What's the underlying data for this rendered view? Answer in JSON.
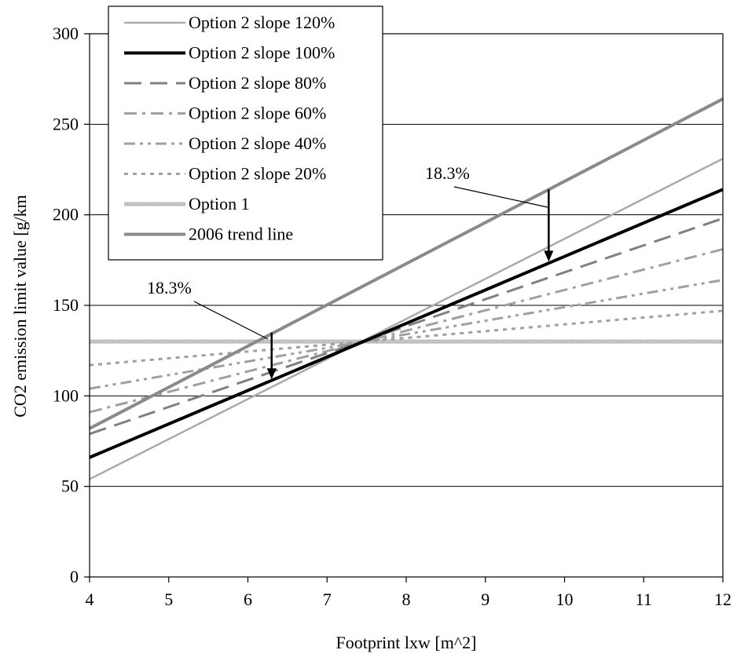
{
  "chart_data": {
    "type": "line",
    "title": "",
    "xlabel": "Footprint lxw [m^2]",
    "ylabel": "CO2 emission limit value [g/km",
    "xlim": [
      4,
      12
    ],
    "ylim": [
      0,
      300
    ],
    "xticks": [
      "4",
      "5",
      "6",
      "7",
      "8",
      "9",
      "10",
      "11",
      "12"
    ],
    "yticks": [
      "0",
      "50",
      "100",
      "150",
      "200",
      "250",
      "300"
    ],
    "grid": "horizontal",
    "legend_position": "top-left",
    "series": [
      {
        "name": "Option 2 slope 120%",
        "x": [
          4,
          12
        ],
        "y": [
          54,
          231
        ],
        "color": "#aaaaaa",
        "style": "solid-thin"
      },
      {
        "name": "Option 2 slope 100%",
        "x": [
          4,
          12
        ],
        "y": [
          66,
          214
        ],
        "color": "#000000",
        "style": "solid-thick"
      },
      {
        "name": "Option 2 slope 80%",
        "x": [
          4,
          12
        ],
        "y": [
          79,
          198
        ],
        "color": "#808080",
        "style": "long-dash"
      },
      {
        "name": "Option 2 slope 60%",
        "x": [
          4,
          12
        ],
        "y": [
          91,
          181
        ],
        "color": "#a0a0a0",
        "style": "dash-dot"
      },
      {
        "name": "Option 2 slope 40%",
        "x": [
          4,
          12
        ],
        "y": [
          104,
          164
        ],
        "color": "#a0a0a0",
        "style": "dash-dot-dot"
      },
      {
        "name": "Option 2 slope 20%",
        "x": [
          4,
          12
        ],
        "y": [
          117,
          147
        ],
        "color": "#a0a0a0",
        "style": "dotted"
      },
      {
        "name": "Option 1",
        "x": [
          4,
          12
        ],
        "y": [
          130,
          130
        ],
        "color": "#bbbbbb",
        "style": "solid-hatched"
      },
      {
        "name": "2006 trend line",
        "x": [
          4,
          12
        ],
        "y": [
          82,
          264
        ],
        "color": "#8a8a8a",
        "style": "solid-thick"
      }
    ],
    "annotations": [
      {
        "text": "18.3%",
        "arrow_x": 9.8,
        "arrow_from": 214,
        "arrow_to": 175
      },
      {
        "text": "18.3%",
        "arrow_x": 6.3,
        "arrow_from": 135,
        "arrow_to": 110
      }
    ]
  }
}
